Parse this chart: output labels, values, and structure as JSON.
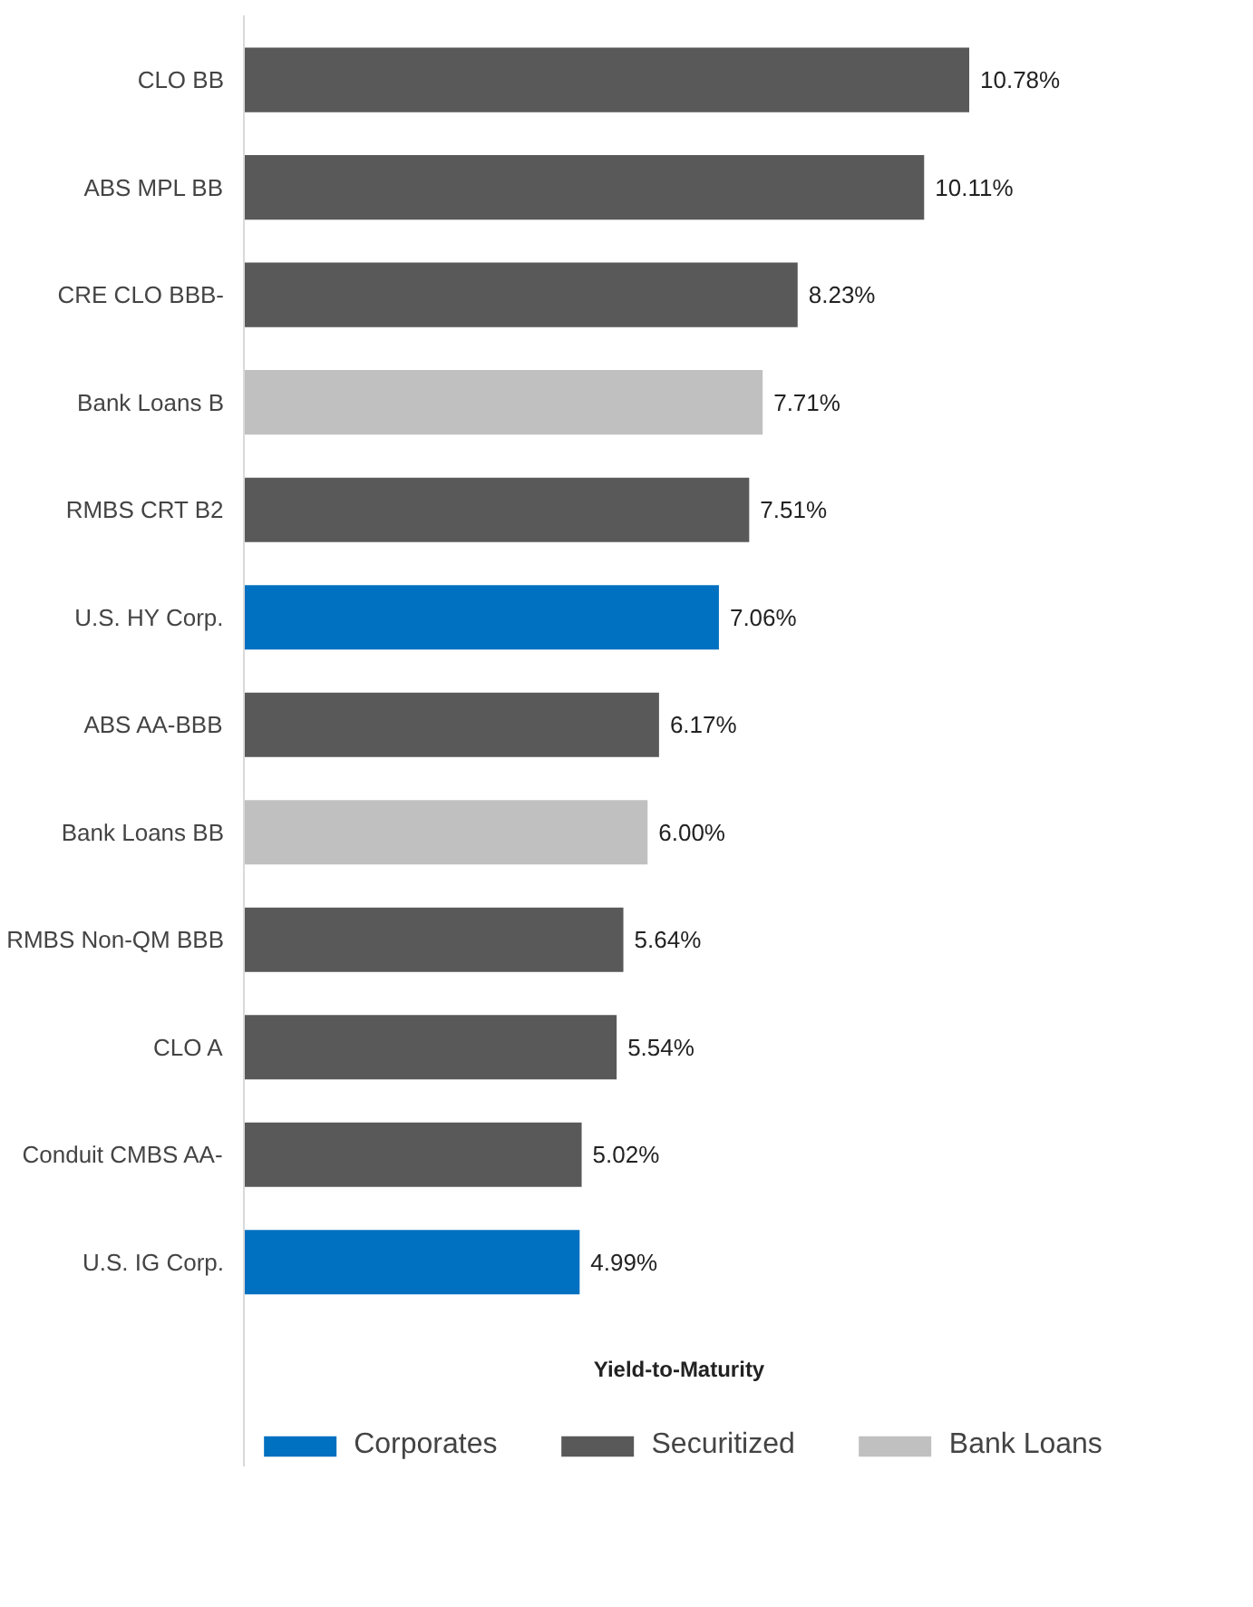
{
  "chart_data": {
    "type": "bar",
    "orientation": "horizontal",
    "categories": [
      "CLO BB",
      "ABS MPL BB",
      "CRE CLO BBB-",
      "Bank Loans B",
      "RMBS CRT B2",
      "U.S. HY Corp.",
      "ABS AA-BBB",
      "Bank Loans BB",
      "RMBS Non-QM BBB",
      "CLO A",
      "Conduit CMBS AA-",
      "U.S. IG Corp."
    ],
    "series": [
      {
        "name": "Corporates",
        "color": "#0070c0",
        "values": [
          null,
          null,
          null,
          null,
          null,
          7.06,
          null,
          null,
          null,
          null,
          null,
          4.99
        ],
        "value_labels": [
          null,
          null,
          null,
          null,
          null,
          "7.06%",
          null,
          null,
          null,
          null,
          null,
          "4.99%"
        ]
      },
      {
        "name": "Securitized",
        "color": "#595959",
        "values": [
          10.78,
          10.11,
          8.23,
          null,
          7.51,
          null,
          6.17,
          null,
          5.64,
          5.54,
          5.02,
          null
        ],
        "value_labels": [
          "10.78%",
          "10.11%",
          "8.23%",
          null,
          "7.51%",
          null,
          "6.17%",
          null,
          "5.64%",
          "5.54%",
          "5.02%",
          null
        ]
      },
      {
        "name": "Bank Loans",
        "color": "#c0c0c0",
        "values": [
          null,
          null,
          null,
          7.71,
          null,
          null,
          null,
          6.0,
          null,
          null,
          null,
          null
        ],
        "value_labels": [
          null,
          null,
          null,
          "7.71%",
          null,
          null,
          null,
          "6.00%",
          null,
          null,
          null,
          null
        ]
      }
    ],
    "xlabel": "Yield-to-Maturity",
    "tick_labels": "y",
    "grid": false,
    "legend": "bottom"
  }
}
